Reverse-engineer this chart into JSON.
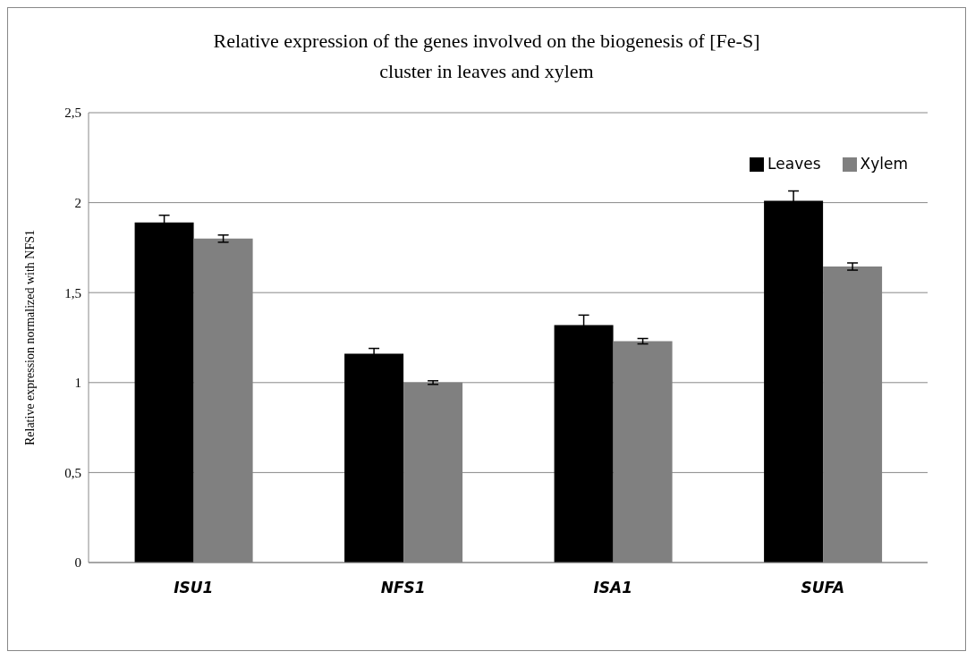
{
  "chart_data": {
    "type": "bar",
    "title": "Relative expression of the genes involved on the biogenesis of [Fe-S] cluster in leaves and xylem",
    "ylabel": "Relative expression normalized with NFS1",
    "categories": [
      "ISU1",
      "NFS1",
      "ISA1",
      "SUFA"
    ],
    "series": [
      {
        "name": "Leaves",
        "color": "#000000",
        "values": [
          1.89,
          1.16,
          1.32,
          2.01
        ],
        "errors": [
          0.04,
          0.03,
          0.055,
          0.055
        ]
      },
      {
        "name": "Xylem",
        "color": "#808080",
        "values": [
          1.8,
          1.0,
          1.23,
          1.645
        ],
        "errors": [
          0.02,
          0.01,
          0.015,
          0.02
        ]
      }
    ],
    "ylim": [
      0,
      2.5
    ],
    "yticks": [
      0,
      {
        "value": 0.5,
        "label": "0,5"
      },
      1,
      {
        "value": 1.5,
        "label": "1,5"
      },
      2,
      {
        "value": 2.5,
        "label": "2,5"
      }
    ],
    "grid": "y",
    "legend": "top right"
  }
}
